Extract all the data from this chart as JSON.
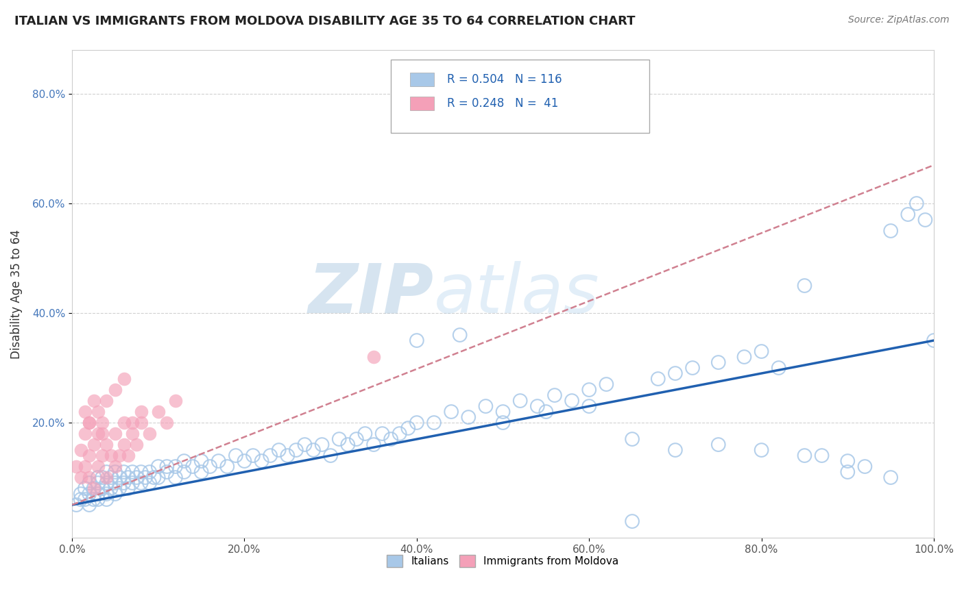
{
  "title": "ITALIAN VS IMMIGRANTS FROM MOLDOVA DISABILITY AGE 35 TO 64 CORRELATION CHART",
  "source": "Source: ZipAtlas.com",
  "ylabel": "Disability Age 35 to 64",
  "xlim": [
    0,
    1.0
  ],
  "ylim": [
    -0.01,
    0.88
  ],
  "xtick_labels": [
    "0.0%",
    "20.0%",
    "40.0%",
    "60.0%",
    "80.0%",
    "100.0%"
  ],
  "xtick_vals": [
    0.0,
    0.2,
    0.4,
    0.6,
    0.8,
    1.0
  ],
  "ytick_labels": [
    "20.0%",
    "40.0%",
    "60.0%",
    "80.0%"
  ],
  "ytick_vals": [
    0.2,
    0.4,
    0.6,
    0.8
  ],
  "blue_R": 0.504,
  "blue_N": 116,
  "pink_R": 0.248,
  "pink_N": 41,
  "blue_color": "#A8C8E8",
  "pink_color": "#F4A0B8",
  "blue_line_color": "#2060B0",
  "pink_line_color": "#E06080",
  "pink_dash_color": "#D08090",
  "watermark_zip": "ZIP",
  "watermark_atlas": "atlas",
  "legend_label_blue": "Italians",
  "legend_label_pink": "Immigrants from Moldova",
  "blue_line_intercept": 0.05,
  "blue_line_slope": 0.3,
  "pink_line_intercept": 0.05,
  "pink_line_slope": 0.62,
  "blue_scatter_x": [
    0.005,
    0.01,
    0.01,
    0.015,
    0.015,
    0.02,
    0.02,
    0.02,
    0.025,
    0.025,
    0.03,
    0.03,
    0.03,
    0.03,
    0.035,
    0.035,
    0.04,
    0.04,
    0.04,
    0.04,
    0.045,
    0.045,
    0.05,
    0.05,
    0.05,
    0.055,
    0.055,
    0.06,
    0.06,
    0.065,
    0.065,
    0.07,
    0.07,
    0.075,
    0.08,
    0.08,
    0.085,
    0.09,
    0.09,
    0.095,
    0.1,
    0.1,
    0.11,
    0.11,
    0.12,
    0.12,
    0.13,
    0.13,
    0.14,
    0.15,
    0.15,
    0.16,
    0.17,
    0.18,
    0.19,
    0.2,
    0.21,
    0.22,
    0.23,
    0.24,
    0.25,
    0.26,
    0.27,
    0.28,
    0.29,
    0.3,
    0.31,
    0.32,
    0.33,
    0.34,
    0.35,
    0.36,
    0.37,
    0.38,
    0.39,
    0.4,
    0.42,
    0.44,
    0.46,
    0.48,
    0.5,
    0.52,
    0.54,
    0.56,
    0.58,
    0.6,
    0.62,
    0.65,
    0.68,
    0.7,
    0.72,
    0.75,
    0.78,
    0.8,
    0.82,
    0.85,
    0.87,
    0.9,
    0.92,
    0.95,
    0.97,
    0.98,
    0.99,
    0.4,
    0.45,
    0.5,
    0.55,
    0.6,
    0.65,
    0.7,
    0.75,
    0.8,
    0.85,
    0.9,
    0.95,
    1.0
  ],
  "blue_scatter_y": [
    0.05,
    0.06,
    0.07,
    0.06,
    0.08,
    0.05,
    0.07,
    0.09,
    0.06,
    0.08,
    0.07,
    0.09,
    0.1,
    0.06,
    0.08,
    0.1,
    0.07,
    0.09,
    0.11,
    0.06,
    0.08,
    0.1,
    0.07,
    0.09,
    0.11,
    0.08,
    0.1,
    0.09,
    0.11,
    0.08,
    0.1,
    0.09,
    0.11,
    0.1,
    0.09,
    0.11,
    0.1,
    0.09,
    0.11,
    0.1,
    0.1,
    0.12,
    0.11,
    0.12,
    0.1,
    0.12,
    0.11,
    0.13,
    0.12,
    0.11,
    0.13,
    0.12,
    0.13,
    0.12,
    0.14,
    0.13,
    0.14,
    0.13,
    0.14,
    0.15,
    0.14,
    0.15,
    0.16,
    0.15,
    0.16,
    0.14,
    0.17,
    0.16,
    0.17,
    0.18,
    0.16,
    0.18,
    0.17,
    0.18,
    0.19,
    0.2,
    0.2,
    0.22,
    0.21,
    0.23,
    0.22,
    0.24,
    0.23,
    0.25,
    0.24,
    0.26,
    0.27,
    0.02,
    0.28,
    0.29,
    0.3,
    0.31,
    0.32,
    0.33,
    0.3,
    0.45,
    0.14,
    0.13,
    0.12,
    0.55,
    0.58,
    0.6,
    0.57,
    0.35,
    0.36,
    0.2,
    0.22,
    0.23,
    0.17,
    0.15,
    0.16,
    0.15,
    0.14,
    0.11,
    0.1,
    0.35
  ],
  "pink_scatter_x": [
    0.005,
    0.01,
    0.01,
    0.015,
    0.015,
    0.02,
    0.02,
    0.02,
    0.025,
    0.025,
    0.03,
    0.03,
    0.035,
    0.035,
    0.04,
    0.04,
    0.045,
    0.05,
    0.05,
    0.055,
    0.06,
    0.06,
    0.065,
    0.07,
    0.075,
    0.08,
    0.09,
    0.1,
    0.11,
    0.12,
    0.015,
    0.02,
    0.025,
    0.03,
    0.035,
    0.04,
    0.05,
    0.06,
    0.07,
    0.08,
    0.35
  ],
  "pink_scatter_y": [
    0.12,
    0.1,
    0.15,
    0.12,
    0.18,
    0.1,
    0.14,
    0.2,
    0.08,
    0.16,
    0.12,
    0.18,
    0.14,
    0.2,
    0.1,
    0.16,
    0.14,
    0.12,
    0.18,
    0.14,
    0.16,
    0.2,
    0.14,
    0.18,
    0.16,
    0.2,
    0.18,
    0.22,
    0.2,
    0.24,
    0.22,
    0.2,
    0.24,
    0.22,
    0.18,
    0.24,
    0.26,
    0.28,
    0.2,
    0.22,
    0.32
  ]
}
